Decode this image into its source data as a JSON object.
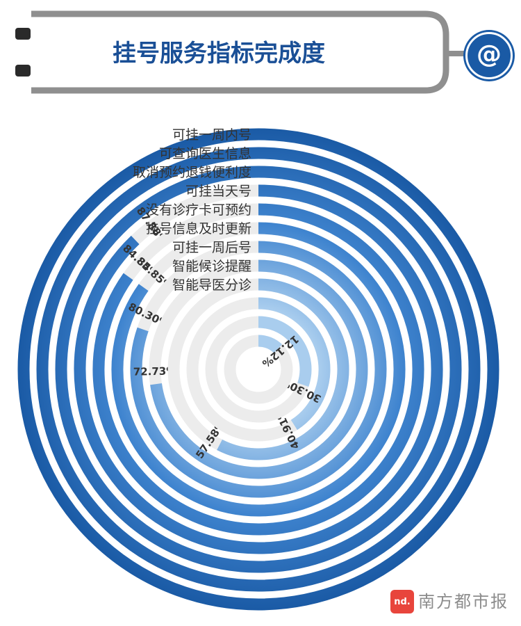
{
  "title": "挂号服务指标完成度",
  "badge_symbol": "@",
  "colors": {
    "primary": "#1a5aa5",
    "track": "#ececec",
    "title": "#1a4f96",
    "label": "#333333",
    "frame": "#8f8f8f",
    "watermark_red": "#e8453c"
  },
  "watermark": {
    "logo_text": "nd.",
    "text": "南方都市报"
  },
  "chart_data": {
    "type": "radial-bar",
    "unit": "%",
    "series": [
      {
        "category": "可挂一周内号",
        "value": 100,
        "value_label": ""
      },
      {
        "category": "可查询医生信息",
        "value": 100,
        "value_label": ""
      },
      {
        "category": "取消预约退钱便利度",
        "value": 100,
        "value_label": ""
      },
      {
        "category": "可挂当天号",
        "value": 87.88,
        "value_label": "87.88%"
      },
      {
        "category": "没有诊疗卡可预约",
        "value": 84.85,
        "value_label": "84.85%"
      },
      {
        "category": "挂号信息及时更新",
        "value": 84.85,
        "value_label": "84.85%"
      },
      {
        "category": "可挂一周后号",
        "value": 80.3,
        "value_label": "80.30%"
      },
      {
        "category": "智能候诊提醒",
        "value": 72.73,
        "value_label": "72.73%"
      },
      {
        "category": "智能导医分诊",
        "value": 57.58,
        "value_label": "57.58%"
      },
      {
        "category": "",
        "value": 40.91,
        "value_label": "40.91%"
      },
      {
        "category": "",
        "value": 30.3,
        "value_label": "30.30%"
      },
      {
        "category": "",
        "value": 12.12,
        "value_label": "12.12%"
      }
    ]
  }
}
